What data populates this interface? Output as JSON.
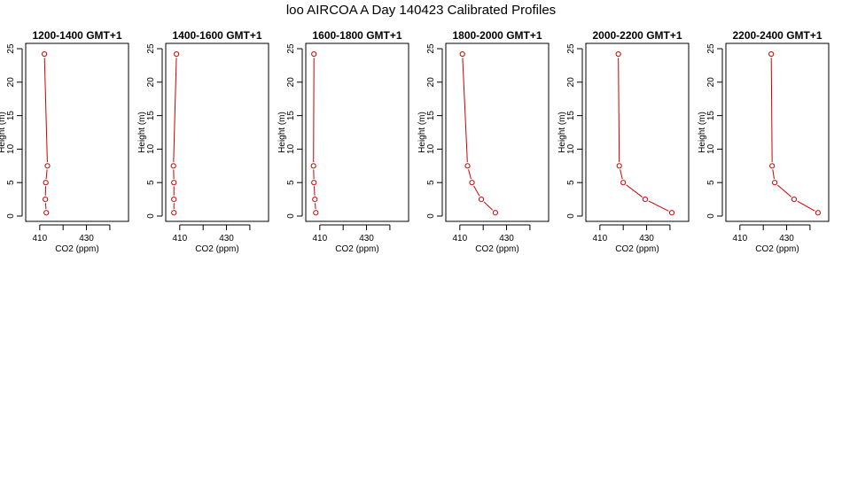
{
  "figure_title": "loo AIRCOA A  Day 140423  Calibrated Profiles",
  "chart_data": [
    {
      "type": "line",
      "title": "1200-1400 GMT+1",
      "xlabel": "CO2 (ppm)",
      "ylabel": "Height (m)",
      "xlim": [
        404,
        448
      ],
      "ylim": [
        0,
        25
      ],
      "xticks": [
        "410",
        "430"
      ],
      "yticks": [
        "0",
        "5",
        "10",
        "15",
        "20",
        "25"
      ],
      "grid": false,
      "color": "#cc0000",
      "x": [
        412.8,
        412.4,
        412.6,
        413.3,
        412.0
      ],
      "y": [
        0.5,
        2.5,
        5.0,
        7.5,
        24.2
      ]
    },
    {
      "type": "line",
      "title": "1400-1600 GMT+1",
      "xlabel": "CO2 (ppm)",
      "ylabel": "Height (m)",
      "xlim": [
        404,
        448
      ],
      "ylim": [
        0,
        25
      ],
      "xticks": [
        "410",
        "430"
      ],
      "yticks": [
        "0",
        "5",
        "10",
        "15",
        "20",
        "25"
      ],
      "grid": false,
      "color": "#cc0000",
      "x": [
        407.5,
        407.5,
        407.5,
        407.3,
        408.6
      ],
      "y": [
        0.5,
        2.5,
        5.0,
        7.5,
        24.2
      ]
    },
    {
      "type": "line",
      "title": "1600-1800 GMT+1",
      "xlabel": "CO2 (ppm)",
      "ylabel": "Height (m)",
      "xlim": [
        404,
        448
      ],
      "ylim": [
        0,
        25
      ],
      "xticks": [
        "410",
        "430"
      ],
      "yticks": [
        "0",
        "5",
        "10",
        "15",
        "20",
        "25"
      ],
      "grid": false,
      "color": "#cc0000",
      "x": [
        408.3,
        407.9,
        407.5,
        407.3,
        407.5
      ],
      "y": [
        0.5,
        2.5,
        5.0,
        7.5,
        24.2
      ]
    },
    {
      "type": "line",
      "title": "1800-2000 GMT+1",
      "xlabel": "CO2 (ppm)",
      "ylabel": "Height (m)",
      "xlim": [
        404,
        448
      ],
      "ylim": [
        0,
        25
      ],
      "xticks": [
        "410",
        "430"
      ],
      "yticks": [
        "0",
        "5",
        "10",
        "15",
        "20",
        "25"
      ],
      "grid": false,
      "color": "#cc0000",
      "x": [
        425.2,
        419.2,
        415.2,
        413.3,
        411.1
      ],
      "y": [
        0.5,
        2.5,
        5.0,
        7.5,
        24.2
      ]
    },
    {
      "type": "line",
      "title": "2000-2200 GMT+1",
      "xlabel": "CO2 (ppm)",
      "ylabel": "Height (m)",
      "xlim": [
        404,
        448
      ],
      "ylim": [
        0,
        25
      ],
      "xticks": [
        "410",
        "430"
      ],
      "yticks": [
        "0",
        "5",
        "10",
        "15",
        "20",
        "25"
      ],
      "grid": false,
      "color": "#cc0000",
      "x": [
        440.8,
        429.4,
        420.0,
        418.3,
        417.9
      ],
      "y": [
        0.5,
        2.5,
        5.0,
        7.5,
        24.2
      ]
    },
    {
      "type": "line",
      "title": "2200-2400 GMT+1",
      "xlabel": "CO2 (ppm)",
      "ylabel": "Height (m)",
      "xlim": [
        404,
        448
      ],
      "ylim": [
        0,
        25
      ],
      "xticks": [
        "410",
        "430"
      ],
      "yticks": [
        "0",
        "5",
        "10",
        "15",
        "20",
        "25"
      ],
      "grid": false,
      "color": "#cc0000",
      "x": [
        443.4,
        433.2,
        424.9,
        423.8,
        423.4
      ],
      "y": [
        0.5,
        2.5,
        5.0,
        7.5,
        24.2
      ]
    }
  ]
}
